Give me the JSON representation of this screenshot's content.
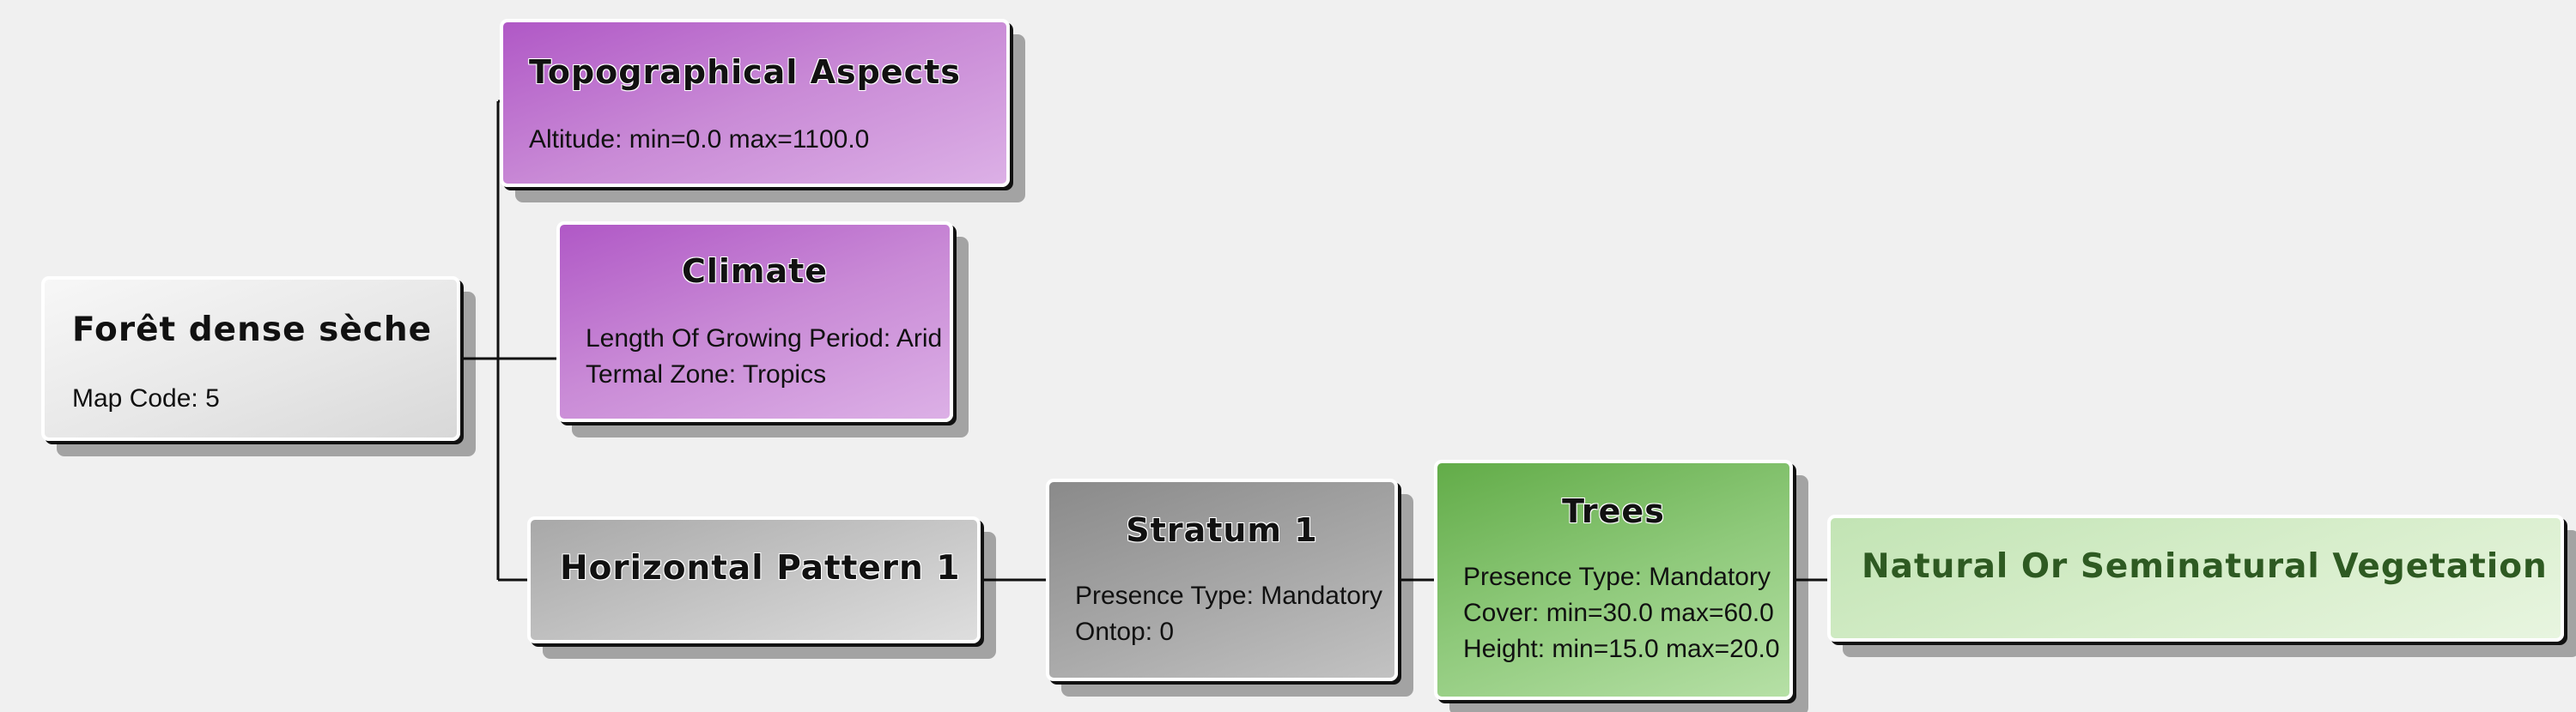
{
  "nodes": {
    "root": {
      "title": "Forêt dense sèche",
      "attrs": [
        "Map Code: 5"
      ]
    },
    "topographical": {
      "title": "Topographical Aspects",
      "attrs": [
        "Altitude: min=0.0 max=1100.0"
      ]
    },
    "climate": {
      "title": "Climate",
      "attrs": [
        "Length Of Growing Period: Arid",
        "Termal Zone: Tropics"
      ]
    },
    "horizontal_pattern": {
      "title": "Horizontal Pattern 1"
    },
    "stratum": {
      "title": "Stratum 1",
      "attrs": [
        "Presence Type: Mandatory",
        "Ontop: 0"
      ]
    },
    "trees": {
      "title": "Trees",
      "attrs": [
        "Presence Type: Mandatory",
        "Cover: min=30.0 max=60.0",
        "Height: min=15.0 max=20.0"
      ]
    },
    "natural_vegetation": {
      "title": "Natural Or Seminatural Vegetation"
    }
  },
  "colors": {
    "background": "#f0f0f0",
    "purple": "#b058c6",
    "gray": "#a8a8a8",
    "green": "#62ac48",
    "light_green": "#d8eecc",
    "connector": "#111111"
  }
}
